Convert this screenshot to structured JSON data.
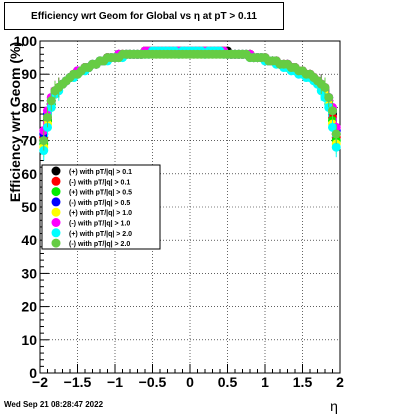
{
  "chart_data": {
    "type": "scatter",
    "title": "Efficiency wrt Geom for Global vs  η at pT > 0.11",
    "xlabel": "η",
    "ylabel": "Efficiency wrt Geom (%)",
    "xlim": [
      -2,
      2
    ],
    "ylim": [
      0,
      100
    ],
    "x_ticks": [
      "−2",
      "−1.5",
      "−1",
      "−0.5",
      "0",
      "0.5",
      "1",
      "1.5",
      "2"
    ],
    "y_ticks": [
      "0",
      "10",
      "20",
      "30",
      "40",
      "50",
      "60",
      "70",
      "80",
      "90",
      "100"
    ],
    "grid": true,
    "legend_position": "left-middle",
    "x": [
      -1.95,
      -1.9,
      -1.85,
      -1.8,
      -1.75,
      -1.7,
      -1.65,
      -1.6,
      -1.55,
      -1.5,
      -1.45,
      -1.4,
      -1.35,
      -1.3,
      -1.25,
      -1.2,
      -1.15,
      -1.1,
      -1.05,
      -1.0,
      -0.95,
      -0.9,
      -0.85,
      -0.8,
      -0.75,
      -0.7,
      -0.65,
      -0.6,
      -0.55,
      -0.5,
      -0.45,
      -0.4,
      -0.35,
      -0.3,
      -0.25,
      -0.2,
      -0.15,
      -0.1,
      -0.05,
      0.0,
      0.05,
      0.1,
      0.15,
      0.2,
      0.25,
      0.3,
      0.35,
      0.4,
      0.45,
      0.5,
      0.55,
      0.6,
      0.65,
      0.7,
      0.75,
      0.8,
      0.85,
      0.9,
      0.95,
      1.0,
      1.05,
      1.1,
      1.15,
      1.2,
      1.25,
      1.3,
      1.35,
      1.4,
      1.45,
      1.5,
      1.55,
      1.6,
      1.65,
      1.7,
      1.75,
      1.8,
      1.85,
      1.9,
      1.95
    ],
    "series": [
      {
        "name": "(+) with pT/|q| > 0.1",
        "color": "#000000",
        "values": [
          70,
          76,
          81,
          84,
          86,
          87,
          88,
          89,
          90,
          90,
          91,
          92,
          92,
          93,
          93,
          94,
          94,
          95,
          95,
          95,
          95,
          96,
          96,
          96,
          96,
          96,
          96,
          97,
          97,
          97,
          97,
          97,
          97,
          97,
          97,
          97,
          97,
          97,
          97,
          97,
          97,
          97,
          97,
          97,
          97,
          97,
          97,
          97,
          97,
          97,
          96,
          96,
          96,
          96,
          96,
          96,
          95,
          95,
          95,
          95,
          94,
          94,
          94,
          93,
          93,
          93,
          92,
          92,
          91,
          91,
          90,
          90,
          89,
          88,
          87,
          85,
          82,
          78,
          72
        ]
      },
      {
        "name": "(-) with pT/|q| > 0.1",
        "color": "#ff0000",
        "values": [
          71,
          77,
          82,
          85,
          86,
          87,
          88,
          89,
          90,
          91,
          91,
          92,
          92,
          93,
          93,
          94,
          94,
          95,
          95,
          95,
          96,
          96,
          96,
          96,
          96,
          96,
          96,
          97,
          97,
          97,
          97,
          97,
          97,
          97,
          97,
          97,
          97,
          97,
          97,
          97,
          97,
          97,
          97,
          97,
          97,
          97,
          97,
          97,
          97,
          96,
          96,
          96,
          96,
          96,
          96,
          96,
          95,
          95,
          95,
          95,
          94,
          94,
          94,
          93,
          93,
          93,
          92,
          92,
          91,
          91,
          90,
          90,
          89,
          88,
          87,
          85,
          82,
          77,
          71
        ]
      },
      {
        "name": "(+) with pT/|q| > 0.5",
        "color": "#00ee00",
        "values": [
          69,
          76,
          81,
          84,
          86,
          87,
          88,
          89,
          90,
          90,
          91,
          92,
          92,
          93,
          93,
          94,
          94,
          95,
          95,
          95,
          95,
          96,
          96,
          96,
          96,
          96,
          96,
          97,
          97,
          97,
          97,
          97,
          97,
          97,
          97,
          97,
          97,
          97,
          97,
          97,
          97,
          97,
          97,
          97,
          97,
          97,
          97,
          97,
          97,
          96,
          96,
          96,
          96,
          96,
          96,
          96,
          95,
          95,
          95,
          95,
          94,
          94,
          94,
          93,
          93,
          92,
          92,
          92,
          91,
          91,
          90,
          90,
          89,
          88,
          86,
          84,
          81,
          76,
          70
        ]
      },
      {
        "name": "(-) with pT/|q| > 0.5",
        "color": "#0000ff",
        "values": [
          72,
          78,
          82,
          85,
          86,
          87,
          88,
          89,
          90,
          91,
          91,
          92,
          92,
          93,
          93,
          94,
          94,
          95,
          95,
          95,
          96,
          96,
          96,
          96,
          96,
          96,
          96,
          97,
          97,
          97,
          97,
          97,
          97,
          97,
          97,
          97,
          97,
          97,
          97,
          97,
          97,
          97,
          97,
          97,
          97,
          97,
          97,
          97,
          97,
          96,
          96,
          96,
          96,
          96,
          96,
          96,
          95,
          95,
          95,
          95,
          94,
          94,
          94,
          93,
          93,
          93,
          92,
          92,
          91,
          91,
          90,
          90,
          89,
          88,
          87,
          85,
          83,
          79,
          73
        ]
      },
      {
        "name": "(+) with pT/|q| > 1.0",
        "color": "#ffff00",
        "values": [
          68,
          75,
          80,
          84,
          86,
          87,
          88,
          89,
          90,
          90,
          91,
          92,
          92,
          93,
          93,
          94,
          94,
          95,
          95,
          95,
          95,
          96,
          96,
          96,
          96,
          96,
          96,
          97,
          97,
          97,
          97,
          97,
          97,
          97,
          97,
          97,
          97,
          97,
          97,
          97,
          97,
          97,
          97,
          97,
          97,
          97,
          97,
          97,
          97,
          96,
          96,
          96,
          96,
          96,
          96,
          96,
          95,
          95,
          95,
          95,
          94,
          94,
          94,
          93,
          93,
          92,
          92,
          92,
          91,
          91,
          90,
          90,
          89,
          88,
          86,
          84,
          81,
          75,
          69
        ]
      },
      {
        "name": "(-) with pT/|q| > 1.0",
        "color": "#ff00ff",
        "values": [
          73,
          79,
          83,
          85,
          86,
          87,
          88,
          89,
          90,
          91,
          91,
          92,
          92,
          93,
          93,
          94,
          94,
          95,
          95,
          95,
          96,
          96,
          96,
          96,
          96,
          96,
          96,
          97,
          97,
          97,
          97,
          97,
          97,
          97,
          97,
          97,
          97,
          97,
          97,
          97,
          97,
          97,
          97,
          97,
          97,
          97,
          97,
          97,
          97,
          96,
          96,
          96,
          96,
          96,
          96,
          96,
          95,
          95,
          95,
          95,
          94,
          94,
          94,
          93,
          93,
          93,
          92,
          92,
          91,
          91,
          90,
          90,
          89,
          88,
          87,
          86,
          83,
          80,
          74
        ]
      },
      {
        "name": "(+) with pT/|q| > 2.0",
        "color": "#00ffff",
        "values": [
          67,
          74,
          80,
          84,
          85,
          87,
          88,
          89,
          89,
          90,
          91,
          91,
          92,
          93,
          93,
          94,
          94,
          94,
          95,
          95,
          95,
          95,
          96,
          96,
          96,
          96,
          96,
          96,
          96,
          97,
          97,
          97,
          97,
          97,
          97,
          97,
          96,
          97,
          97,
          97,
          97,
          97,
          97,
          96,
          97,
          97,
          97,
          97,
          96,
          96,
          96,
          96,
          96,
          96,
          96,
          95,
          95,
          95,
          95,
          94,
          94,
          94,
          93,
          93,
          92,
          92,
          91,
          91,
          90,
          90,
          89,
          89,
          88,
          87,
          85,
          83,
          80,
          74,
          68
        ]
      },
      {
        "name": "(-) with pT/|q| > 2.0",
        "color": "#66cc44",
        "values": [
          70,
          77,
          82,
          85,
          86,
          87,
          88,
          89,
          90,
          90,
          91,
          92,
          92,
          93,
          93,
          94,
          94,
          95,
          95,
          95,
          95,
          96,
          96,
          96,
          96,
          96,
          96,
          96,
          96,
          96,
          96,
          96,
          96,
          96,
          96,
          96,
          96,
          96,
          96,
          96,
          96,
          96,
          96,
          96,
          96,
          96,
          96,
          96,
          96,
          96,
          96,
          96,
          96,
          96,
          96,
          95,
          95,
          95,
          95,
          95,
          94,
          94,
          94,
          93,
          93,
          93,
          92,
          92,
          91,
          91,
          90,
          90,
          89,
          88,
          87,
          86,
          83,
          79,
          72
        ]
      }
    ]
  },
  "footer": {
    "date": "Wed Sep 21 08:28:47 2022"
  }
}
